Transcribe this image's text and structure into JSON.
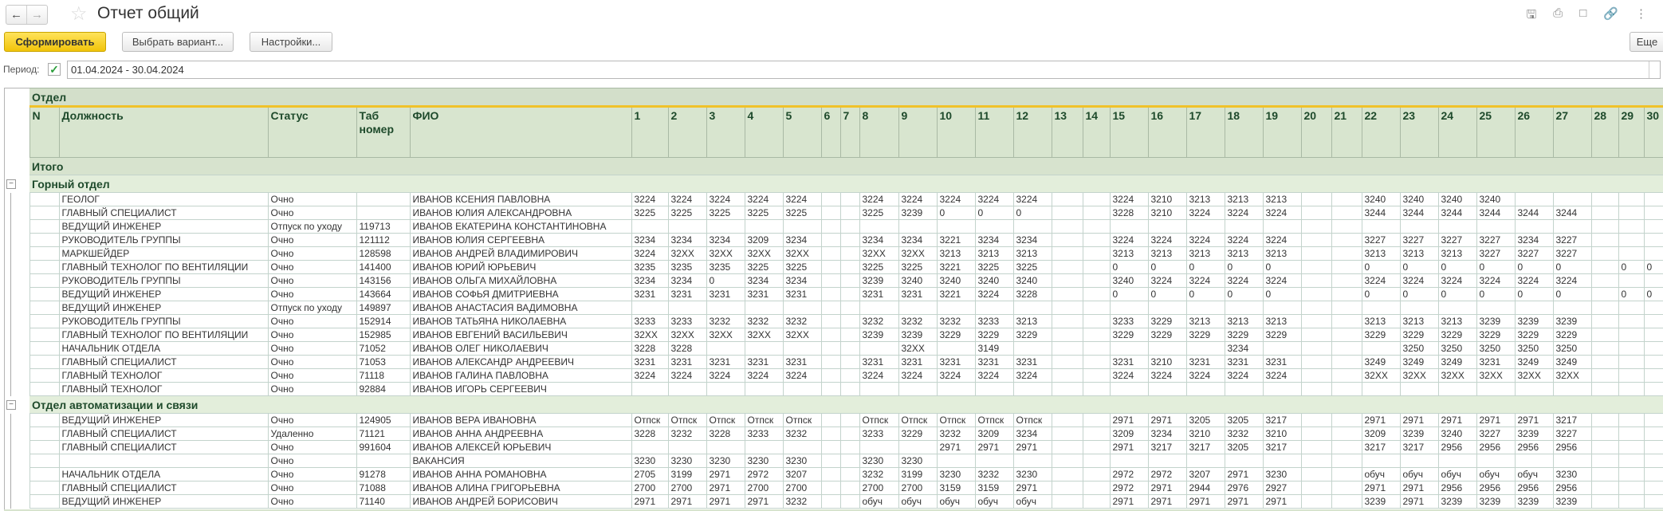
{
  "header": {
    "title": "Отчет общий",
    "back_icon": "arrow-left",
    "forward_icon": "arrow-right",
    "favorite_icon": "star",
    "icons": [
      "save-icon",
      "print-icon",
      "preview-icon",
      "link-icon",
      "more-icon"
    ]
  },
  "toolbar": {
    "generate": "Сформировать",
    "choose_variant": "Выбрать вариант...",
    "settings": "Настройки...",
    "more": "Еще"
  },
  "period": {
    "label": "Период:",
    "enabled": true,
    "value": "01.04.2024 - 30.04.2024"
  },
  "colors": {
    "accent": "#f1c40a",
    "header_bg": "#d8e5cf",
    "header_text": "#1e4a2b",
    "section_bg": "#e3eedb",
    "header_line": "#f0c22a"
  },
  "table": {
    "group_header": "Отдел",
    "columns": [
      "N",
      "Должность",
      "Статус",
      "Таб номер",
      "ФИО",
      "1",
      "2",
      "3",
      "4",
      "5",
      "6",
      "7",
      "8",
      "9",
      "10",
      "11",
      "12",
      "13",
      "14",
      "15",
      "16",
      "17",
      "18",
      "19",
      "20",
      "21",
      "22",
      "23",
      "24",
      "25",
      "26",
      "27",
      "28",
      "29",
      "30"
    ],
    "total_label": "Итого",
    "sections": [
      {
        "name": "Горный отдел",
        "rows": [
          {
            "pos": "ГЕОЛОГ",
            "status": "Очно",
            "tab": "",
            "fio": "ИВАНОВ КСЕНИЯ ПАВЛОВНА",
            "d": [
              "3224",
              "3224",
              "3224",
              "3224",
              "3224",
              "",
              "",
              "3224",
              "3224",
              "3224",
              "3224",
              "3224",
              "",
              "",
              "3224",
              "3210",
              "3213",
              "3213",
              "3213",
              "",
              "",
              "3240",
              "3240",
              "3240",
              "3240",
              "",
              "",
              "",
              "",
              ""
            ]
          },
          {
            "pos": "ГЛАВНЫЙ СПЕЦИАЛИСТ",
            "status": "Очно",
            "tab": "",
            "fio": "ИВАНОВ ЮЛИЯ АЛЕКСАНДРОВНА",
            "d": [
              "3225",
              "3225",
              "3225",
              "3225",
              "3225",
              "",
              "",
              "3225",
              "3239",
              "0",
              "0",
              "0",
              "",
              "",
              "3228",
              "3210",
              "3224",
              "3224",
              "3224",
              "",
              "",
              "3244",
              "3244",
              "3244",
              "3244",
              "3244",
              "3244",
              "",
              "",
              ""
            ]
          },
          {
            "pos": "ВЕДУЩИЙ ИНЖЕНЕР",
            "status": "Отпуск по уходу",
            "tab": "119713",
            "fio": "ИВАНОВ ЕКАТЕРИНА КОНСТАНТИНОВНА",
            "d": [
              "",
              "",
              "",
              "",
              "",
              "",
              "",
              "",
              "",
              "",
              "",
              "",
              "",
              "",
              "",
              "",
              "",
              "",
              "",
              "",
              "",
              "",
              "",
              "",
              "",
              "",
              "",
              "",
              "",
              ""
            ]
          },
          {
            "pos": "РУКОВОДИТЕЛЬ ГРУППЫ",
            "status": "Очно",
            "tab": "121112",
            "fio": "ИВАНОВ ЮЛИЯ СЕРГЕЕВНА",
            "d": [
              "3234",
              "3234",
              "3234",
              "3209",
              "3234",
              "",
              "",
              "3234",
              "3234",
              "3221",
              "3234",
              "3234",
              "",
              "",
              "3224",
              "3224",
              "3224",
              "3224",
              "3224",
              "",
              "",
              "3227",
              "3227",
              "3227",
              "3227",
              "3234",
              "3227",
              "",
              "",
              ""
            ]
          },
          {
            "pos": "МАРКШЕЙДЕР",
            "status": "Очно",
            "tab": "128598",
            "fio": "ИВАНОВ АНДРЕЙ ВЛАДИМИРОВИЧ",
            "d": [
              "3224",
              "32XX",
              "32XX",
              "32XX",
              "32XX",
              "",
              "",
              "32XX",
              "32XX",
              "3213",
              "3213",
              "3213",
              "",
              "",
              "3213",
              "3213",
              "3213",
              "3213",
              "3213",
              "",
              "",
              "3213",
              "3213",
              "3213",
              "3227",
              "3227",
              "3227",
              "",
              "",
              ""
            ]
          },
          {
            "pos": "ГЛАВНЫЙ ТЕХНОЛОГ ПО ВЕНТИЛЯЦИИ",
            "status": "Очно",
            "tab": "141400",
            "fio": "ИВАНОВ ЮРИЙ ЮРЬЕВИЧ",
            "d": [
              "3235",
              "3235",
              "3235",
              "3225",
              "3225",
              "",
              "",
              "3225",
              "3225",
              "3221",
              "3225",
              "3225",
              "",
              "",
              "0",
              "0",
              "0",
              "0",
              "0",
              "",
              "",
              "0",
              "0",
              "0",
              "0",
              "0",
              "0",
              "",
              "0",
              "0"
            ]
          },
          {
            "pos": "РУКОВОДИТЕЛЬ ГРУППЫ",
            "status": "Очно",
            "tab": "143156",
            "fio": "ИВАНОВ ОЛЬГА МИХАЙЛОВНА",
            "d": [
              "3234",
              "3234",
              "0",
              "3234",
              "3234",
              "",
              "",
              "3239",
              "3240",
              "3240",
              "3240",
              "3240",
              "",
              "",
              "3240",
              "3224",
              "3224",
              "3224",
              "3224",
              "",
              "",
              "3224",
              "3224",
              "3224",
              "3224",
              "3224",
              "3224",
              "",
              "",
              ""
            ]
          },
          {
            "pos": "ВЕДУЩИЙ ИНЖЕНЕР",
            "status": "Очно",
            "tab": "143664",
            "fio": "ИВАНОВ СОФЬЯ ДМИТРИЕВНА",
            "d": [
              "3231",
              "3231",
              "3231",
              "3231",
              "3231",
              "",
              "",
              "3231",
              "3231",
              "3221",
              "3224",
              "3228",
              "",
              "",
              "0",
              "0",
              "0",
              "0",
              "0",
              "",
              "",
              "0",
              "0",
              "0",
              "0",
              "0",
              "0",
              "",
              "0",
              "0"
            ]
          },
          {
            "pos": "ВЕДУЩИЙ ИНЖЕНЕР",
            "status": "Отпуск по уходу",
            "tab": "149897",
            "fio": "ИВАНОВ АНАСТАСИЯ ВАДИМОВНА",
            "d": [
              "",
              "",
              "",
              "",
              "",
              "",
              "",
              "",
              "",
              "",
              "",
              "",
              "",
              "",
              "",
              "",
              "",
              "",
              "",
              "",
              "",
              "",
              "",
              "",
              "",
              "",
              "",
              "",
              "",
              ""
            ]
          },
          {
            "pos": "РУКОВОДИТЕЛЬ ГРУППЫ",
            "status": "Очно",
            "tab": "152914",
            "fio": "ИВАНОВ ТАТЬЯНА НИКОЛАЕВНА",
            "d": [
              "3233",
              "3233",
              "3232",
              "3232",
              "3232",
              "",
              "",
              "3232",
              "3232",
              "3232",
              "3233",
              "3213",
              "",
              "",
              "3233",
              "3229",
              "3213",
              "3213",
              "3213",
              "",
              "",
              "3213",
              "3213",
              "3213",
              "3239",
              "3239",
              "3239",
              "",
              "",
              ""
            ]
          },
          {
            "pos": "ГЛАВНЫЙ ТЕХНОЛОГ ПО ВЕНТИЛЯЦИИ",
            "status": "Очно",
            "tab": "152985",
            "fio": "ИВАНОВ ЕВГЕНИЙ ВАСИЛЬЕВИЧ",
            "d": [
              "32XX",
              "32XX",
              "32XX",
              "32XX",
              "32XX",
              "",
              "",
              "3239",
              "3239",
              "3229",
              "3229",
              "3229",
              "",
              "",
              "3229",
              "3229",
              "3229",
              "3229",
              "3229",
              "",
              "",
              "3229",
              "3229",
              "3229",
              "3229",
              "3229",
              "3229",
              "",
              "",
              ""
            ]
          },
          {
            "pos": "НАЧАЛЬНИК ОТДЕЛА",
            "status": "Очно",
            "tab": "71052",
            "fio": "ИВАНОВ ОЛЕГ НИКОЛАЕВИЧ",
            "d": [
              "3228",
              "3228",
              "",
              "",
              "",
              "",
              "",
              "",
              "32XX",
              "",
              "3149",
              "",
              "",
              "",
              "",
              "",
              "",
              "3234",
              "",
              "",
              "",
              "",
              "3250",
              "3250",
              "3250",
              "3250",
              "3250",
              "",
              "",
              ""
            ]
          },
          {
            "pos": "ГЛАВНЫЙ СПЕЦИАЛИСТ",
            "status": "Очно",
            "tab": "71053",
            "fio": "ИВАНОВ АЛЕКСАНДР АНДРЕЕВИЧ",
            "d": [
              "3231",
              "3231",
              "3231",
              "3231",
              "3231",
              "",
              "",
              "3231",
              "3231",
              "3231",
              "3231",
              "3231",
              "",
              "",
              "3231",
              "3210",
              "3231",
              "3231",
              "3231",
              "",
              "",
              "3249",
              "3249",
              "3249",
              "3231",
              "3249",
              "3249",
              "",
              "",
              ""
            ]
          },
          {
            "pos": "ГЛАВНЫЙ ТЕХНОЛОГ",
            "status": "Очно",
            "tab": "71118",
            "fio": "ИВАНОВ ГАЛИНА ПАВЛОВНА",
            "d": [
              "3224",
              "3224",
              "3224",
              "3224",
              "3224",
              "",
              "",
              "3224",
              "3224",
              "3224",
              "3224",
              "3224",
              "",
              "",
              "3224",
              "3224",
              "3224",
              "3224",
              "3224",
              "",
              "",
              "32XX",
              "32XX",
              "32XX",
              "32XX",
              "32XX",
              "32XX",
              "",
              "",
              ""
            ]
          },
          {
            "pos": "ГЛАВНЫЙ ТЕХНОЛОГ",
            "status": "Очно",
            "tab": "92884",
            "fio": "ИВАНОВ ИГОРЬ  СЕРГЕЕВИЧ",
            "d": [
              "",
              "",
              "",
              "",
              "",
              "",
              "",
              "",
              "",
              "",
              "",
              "",
              "",
              "",
              "",
              "",
              "",
              "",
              "",
              "",
              "",
              "",
              "",
              "",
              "",
              "",
              "",
              "",
              "",
              ""
            ]
          }
        ]
      },
      {
        "name": "Отдел автоматизации и связи",
        "rows": [
          {
            "pos": "ВЕДУЩИЙ ИНЖЕНЕР",
            "status": "Очно",
            "tab": "124905",
            "fio": "ИВАНОВ ВЕРА ИВАНОВНА",
            "d": [
              "Отпск",
              "Отпск",
              "Отпск",
              "Отпск",
              "Отпск",
              "",
              "",
              "Отпск",
              "Отпск",
              "Отпск",
              "Отпск",
              "Отпск",
              "",
              "",
              "2971",
              "2971",
              "3205",
              "3205",
              "3217",
              "",
              "",
              "2971",
              "2971",
              "2971",
              "2971",
              "2971",
              "3217",
              "",
              "",
              ""
            ]
          },
          {
            "pos": "ГЛАВНЫЙ СПЕЦИАЛИСТ",
            "status": "Удаленно",
            "tab": "71121",
            "fio": "ИВАНОВ АННА АНДРЕЕВНА",
            "d": [
              "3228",
              "3232",
              "3228",
              "3233",
              "3232",
              "",
              "",
              "3233",
              "3229",
              "3232",
              "3209",
              "3234",
              "",
              "",
              "3209",
              "3234",
              "3210",
              "3232",
              "3210",
              "",
              "",
              "3209",
              "3239",
              "3240",
              "3227",
              "3239",
              "3227",
              "",
              "",
              ""
            ]
          },
          {
            "pos": "ГЛАВНЫЙ СПЕЦИАЛИСТ",
            "status": "Очно",
            "tab": "991604",
            "fio": "ИВАНОВ АЛЕКСЕЙ ЮРЬЕВИЧ",
            "d": [
              "",
              "",
              "",
              "",
              "",
              "",
              "",
              "",
              "",
              "2971",
              "2971",
              "2971",
              "",
              "",
              "2971",
              "3217",
              "3217",
              "3205",
              "3217",
              "",
              "",
              "3217",
              "3217",
              "2956",
              "2956",
              "2956",
              "2956",
              "",
              "",
              ""
            ]
          },
          {
            "pos": "",
            "status": "Очно",
            "tab": "",
            "fio": "ВАКАНСИЯ",
            "d": [
              "3230",
              "3230",
              "3230",
              "3230",
              "3230",
              "",
              "",
              "3230",
              "3230",
              "",
              "",
              "",
              "",
              "",
              "",
              "",
              "",
              "",
              "",
              "",
              "",
              "",
              "",
              "",
              "",
              "",
              "",
              "",
              "",
              ""
            ]
          },
          {
            "pos": "НАЧАЛЬНИК ОТДЕЛА",
            "status": "Очно",
            "tab": "91278",
            "fio": "ИВАНОВ АННА РОМАНОВНА",
            "d": [
              "2705",
              "3199",
              "2971",
              "2972",
              "3207",
              "",
              "",
              "3232",
              "3199",
              "3230",
              "3232",
              "3230",
              "",
              "",
              "2972",
              "2972",
              "3207",
              "2971",
              "3230",
              "",
              "",
              "обуч",
              "обуч",
              "обуч",
              "обуч",
              "обуч",
              "3230",
              "",
              "",
              ""
            ]
          },
          {
            "pos": "ГЛАВНЫЙ СПЕЦИАЛИСТ",
            "status": "Очно",
            "tab": "71088",
            "fio": "ИВАНОВ АЛИНА ГРИГОРЬЕВНА",
            "d": [
              "2700",
              "2700",
              "2971",
              "2700",
              "2700",
              "",
              "",
              "2700",
              "2700",
              "3159",
              "3159",
              "2971",
              "",
              "",
              "2972",
              "2971",
              "2944",
              "2976",
              "2927",
              "",
              "",
              "2971",
              "2971",
              "2956",
              "2956",
              "2956",
              "2956",
              "",
              "",
              ""
            ]
          },
          {
            "pos": "ВЕДУЩИЙ ИНЖЕНЕР",
            "status": "Очно",
            "tab": "71140",
            "fio": "ИВАНОВ АНДРЕЙ БОРИСОВИЧ",
            "d": [
              "2971",
              "2971",
              "2971",
              "2971",
              "3232",
              "",
              "",
              "обуч",
              "обуч",
              "обуч",
              "обуч",
              "обуч",
              "",
              "",
              "2971",
              "2971",
              "2971",
              "2971",
              "2971",
              "",
              "",
              "3239",
              "2971",
              "3239",
              "3239",
              "3239",
              "3239",
              "",
              "",
              ""
            ]
          }
        ]
      }
    ]
  }
}
